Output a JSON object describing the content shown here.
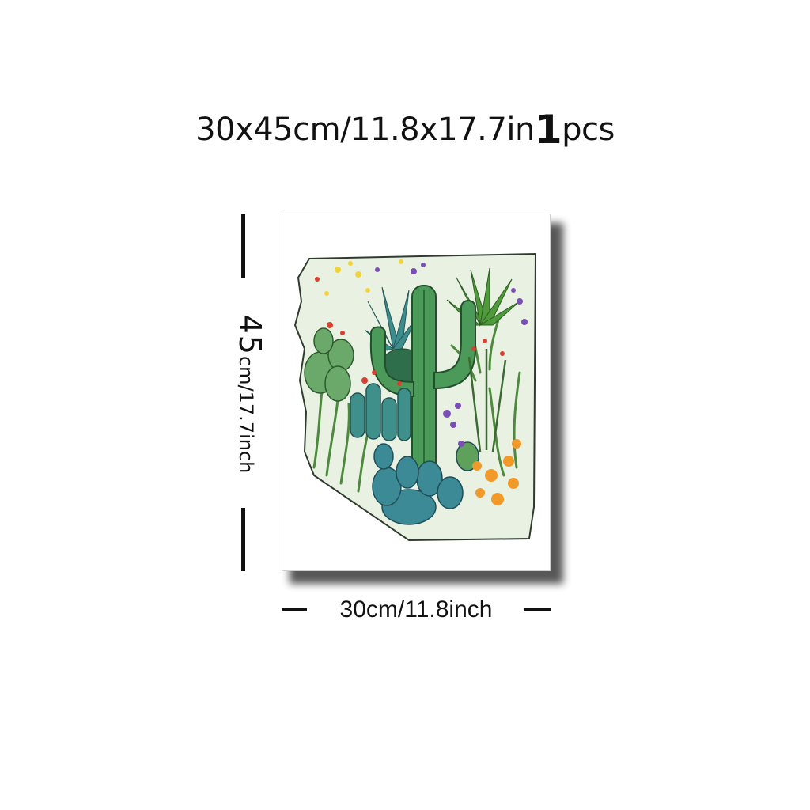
{
  "title": {
    "size_text": "30x45cm/11.8x17.7in",
    "qty_number": "1",
    "qty_unit": "pcs"
  },
  "dimensions": {
    "height_value": "45",
    "height_unit": "cm/17.7inch",
    "width_label": "30cm/11.8inch"
  },
  "colors": {
    "background": "#ffffff",
    "text": "#111111",
    "frame_shadow": "#3a3a3a",
    "cactus_green": "#3f8f4f",
    "succulent_teal": "#3e8c8c",
    "flower_orange": "#f19a2a",
    "flower_purple": "#7a4fb5",
    "flower_red": "#d9402e"
  },
  "artwork": {
    "subject": "saguaro-cactus-desert-plants",
    "icon": "cactus-artwork"
  }
}
